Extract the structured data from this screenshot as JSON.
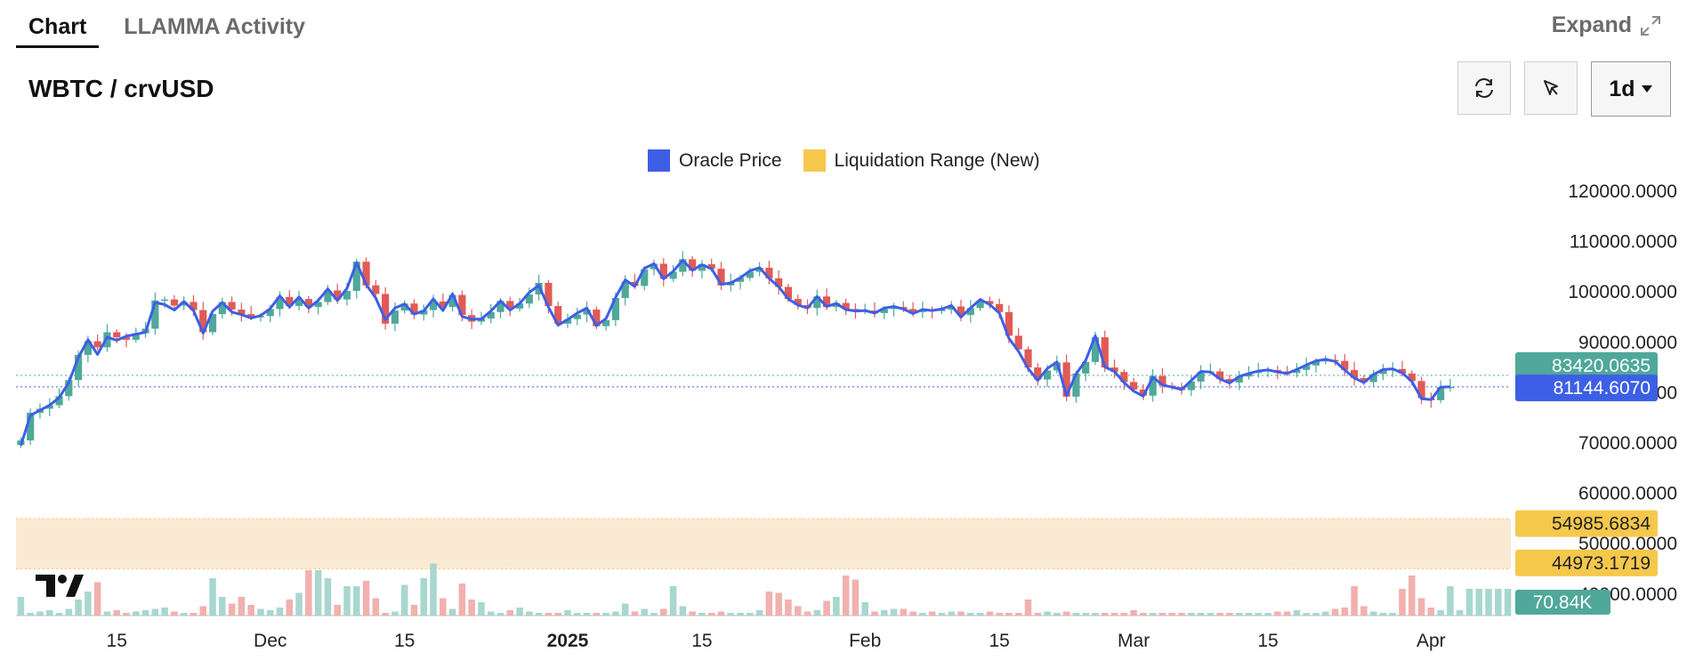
{
  "tabs": [
    {
      "label": "Chart"
    },
    {
      "label": "LLAMMA Activity"
    }
  ],
  "expand_label": "Expand",
  "pair_title": "WBTC / crvUSD",
  "toolbar": {
    "refresh_icon": "refresh-icon",
    "cursor_icon": "cursor-icon",
    "timeframe": "1d",
    "dropdown_icon": "caret-down-icon"
  },
  "legend": [
    {
      "label": "Oracle Price",
      "color": "#3d5fe6"
    },
    {
      "label": "Liquidation Range (New)",
      "color": "#f5c84c"
    }
  ],
  "colors": {
    "up": "#4fa89a",
    "down": "#e15a55",
    "oracle": "#3d5fe6",
    "band": "#fbead3",
    "band_tag": "#f5c84c"
  },
  "chart_data": {
    "type": "candlestick",
    "y_ticks": [
      "120000.0000",
      "110000.0000",
      "100000.0000",
      "90000.0000",
      "80000.0000",
      "70000.0000",
      "60000.0000",
      "50000.0000",
      "40000.0000"
    ],
    "ylim": [
      38000,
      120000
    ],
    "x_ticks": [
      {
        "label": "15",
        "day": 10
      },
      {
        "label": "Dec",
        "day": 26
      },
      {
        "label": "15",
        "day": 40
      },
      {
        "label": "2025",
        "day": 57,
        "bold": true
      },
      {
        "label": "15",
        "day": 71
      },
      {
        "label": "Feb",
        "day": 88
      },
      {
        "label": "15",
        "day": 102
      },
      {
        "label": "Mar",
        "day": 116
      },
      {
        "label": "15",
        "day": 130
      },
      {
        "label": "Apr",
        "day": 147
      }
    ],
    "days": 156,
    "close_prices": [
      70500,
      76000,
      76800,
      77500,
      79300,
      82500,
      87500,
      90200,
      89000,
      92000,
      91000,
      90500,
      91800,
      92700,
      98300,
      98500,
      97300,
      98000,
      96400,
      92000,
      95600,
      98000,
      96500,
      95600,
      95000,
      95200,
      96600,
      99000,
      97200,
      98600,
      97000,
      98000,
      100300,
      98500,
      100200,
      106000,
      101300,
      99600,
      93700,
      96300,
      97700,
      95500,
      96400,
      98100,
      97000,
      99400,
      95400,
      94100,
      94700,
      96000,
      98200,
      96700,
      97700,
      99500,
      101800,
      97200,
      93700,
      94600,
      95500,
      96500,
      93200,
      94400,
      98800,
      102000,
      101200,
      104500,
      105600,
      102600,
      104000,
      106500,
      104200,
      105500,
      104600,
      101300,
      102000,
      102800,
      104000,
      104800,
      102700,
      101000,
      98600,
      97400,
      96800,
      99100,
      97000,
      97800,
      96600,
      96200,
      96300,
      95800,
      96600,
      97000,
      96600,
      96000,
      96500,
      96200,
      96500,
      97100,
      95400,
      96800,
      98200,
      97600,
      96000,
      91300,
      88600,
      85000,
      82600,
      84400,
      86000,
      79200,
      83800,
      86100,
      91000,
      85000,
      84100,
      82100,
      80600,
      79400,
      83300,
      81400,
      81100,
      80500,
      82200,
      84100,
      84200,
      82700,
      82000,
      83200,
      83900,
      84300,
      84500,
      84200,
      83900,
      84500,
      85400,
      86200,
      86500,
      86300,
      84500,
      82900,
      82100,
      83700,
      84600,
      84700,
      83800,
      82300,
      78900,
      78500,
      81100,
      81144,
      81144,
      81144,
      81144,
      81144,
      81144,
      81144
    ],
    "oracle_price": [
      69500,
      75500,
      76500,
      77500,
      79000,
      82000,
      87000,
      90500,
      87600,
      91000,
      90400,
      91200,
      91600,
      92000,
      97900,
      97500,
      96400,
      98100,
      96300,
      91800,
      96200,
      97900,
      96000,
      95500,
      94800,
      95300,
      96700,
      99200,
      97000,
      99000,
      96800,
      98300,
      100600,
      98300,
      100700,
      105800,
      101500,
      98800,
      94500,
      96800,
      97600,
      95600,
      96200,
      98600,
      96300,
      99600,
      95100,
      94600,
      94600,
      96200,
      98200,
      96400,
      97700,
      99900,
      101300,
      97000,
      93400,
      94500,
      95800,
      96800,
      93300,
      94700,
      98900,
      102400,
      101100,
      104700,
      105600,
      102600,
      104100,
      106300,
      104300,
      105400,
      104600,
      101500,
      101800,
      102800,
      104200,
      104800,
      102700,
      101000,
      98600,
      97400,
      96800,
      99100,
      97100,
      97700,
      96500,
      96200,
      96300,
      95800,
      96800,
      97100,
      96600,
      95700,
      96500,
      96300,
      96600,
      97300,
      95000,
      96800,
      98500,
      97500,
      95800,
      90800,
      88200,
      84800,
      82400,
      84800,
      86100,
      79400,
      83700,
      86400,
      91300,
      85100,
      84200,
      82000,
      80300,
      79300,
      83100,
      81500,
      81100,
      80600,
      82400,
      84200,
      84100,
      82700,
      81900,
      83200,
      83800,
      84300,
      84500,
      84100,
      83800,
      84600,
      85500,
      86300,
      86600,
      86200,
      84500,
      82900,
      82000,
      83600,
      84600,
      84700,
      83900,
      82200,
      78800,
      78600,
      81100,
      81144
    ],
    "volume_pct": [
      14,
      2,
      3,
      4,
      2,
      5,
      12,
      18,
      25,
      3,
      4,
      2,
      3,
      4,
      5,
      6,
      3,
      2,
      2,
      7,
      28,
      14,
      9,
      14,
      8,
      5,
      4,
      6,
      12,
      17,
      34,
      34,
      28,
      8,
      22,
      22,
      26,
      13,
      2,
      3,
      23,
      8,
      28,
      39,
      13,
      5,
      24,
      12,
      10,
      3,
      2,
      4,
      6,
      3,
      2,
      2,
      2,
      4,
      2,
      2,
      2,
      2,
      3,
      9,
      3,
      5,
      2,
      5,
      22,
      7,
      3,
      2,
      2,
      3,
      2,
      2,
      2,
      4,
      18,
      17,
      12,
      7,
      3,
      4,
      11,
      14,
      30,
      27,
      10,
      3,
      4,
      5,
      5,
      3,
      2,
      3,
      2,
      3,
      3,
      2,
      2,
      3,
      2,
      2,
      2,
      12,
      2,
      3,
      2,
      3,
      2,
      2,
      2,
      2,
      2,
      2,
      4,
      2,
      2,
      2,
      2,
      2,
      2,
      2,
      2,
      2,
      2,
      2,
      2,
      2,
      2,
      3,
      3,
      4,
      2,
      2,
      3,
      5,
      6,
      22,
      7,
      3,
      2,
      2,
      20,
      30,
      13,
      6,
      4,
      22,
      4,
      20,
      20,
      20,
      20,
      20
    ],
    "current_price_tag": "83420.0635",
    "oracle_tag": "81144.6070",
    "band_upper_tag": "54985.6834",
    "band_lower_tag": "44973.1719",
    "band_range": [
      44973.1719,
      54985.6834
    ],
    "volume_tag": "70.84K"
  }
}
